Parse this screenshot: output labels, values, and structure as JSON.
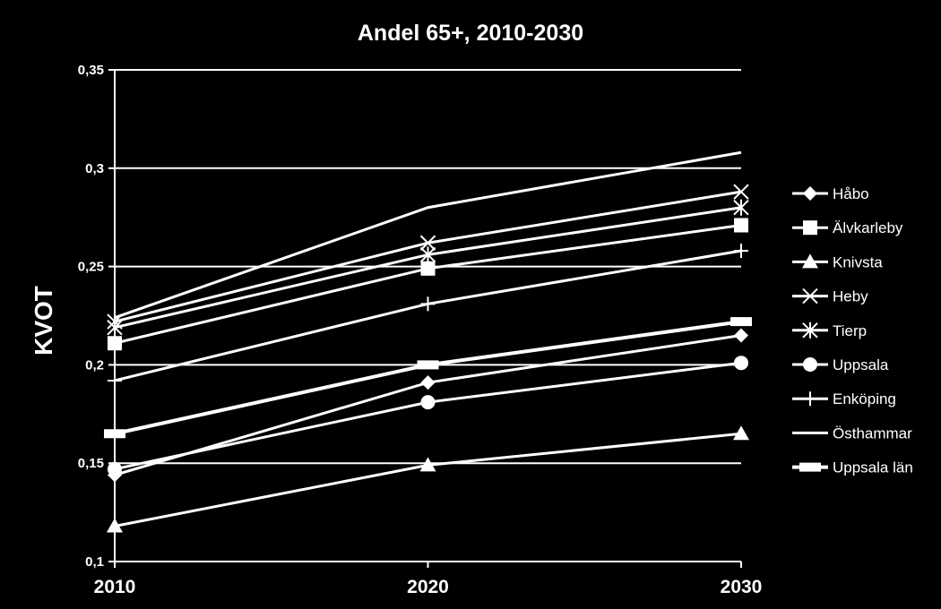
{
  "chart_data": {
    "type": "line",
    "title": "Andel 65+, 2010-2030",
    "xlabel": "",
    "ylabel": "KVOT",
    "x": [
      "2010",
      "2020",
      "2030"
    ],
    "ylim": [
      0.1,
      0.35
    ],
    "yticks": [
      0.1,
      0.15,
      0.2,
      0.25,
      0.3,
      0.35
    ],
    "ytick_labels": [
      "0,1",
      "0,15",
      "0,2",
      "0,25",
      "0,3",
      "0,35"
    ],
    "grid": "horizontal",
    "legend": "right",
    "line_color": "#ffffff",
    "background": "#000000",
    "series": [
      {
        "name": "Håbo",
        "marker": "diamond",
        "values": [
          0.144,
          0.191,
          0.215
        ]
      },
      {
        "name": "Älvkarleby",
        "marker": "square",
        "values": [
          0.211,
          0.249,
          0.271
        ]
      },
      {
        "name": "Knivsta",
        "marker": "triangle",
        "values": [
          0.118,
          0.149,
          0.165
        ]
      },
      {
        "name": "Heby",
        "marker": "x",
        "values": [
          0.222,
          0.262,
          0.288
        ]
      },
      {
        "name": "Tierp",
        "marker": "asterisk",
        "values": [
          0.219,
          0.256,
          0.28
        ]
      },
      {
        "name": "Uppsala",
        "marker": "circle",
        "values": [
          0.147,
          0.181,
          0.201
        ]
      },
      {
        "name": "Enköping",
        "marker": "plus",
        "values": [
          0.192,
          0.231,
          0.258
        ]
      },
      {
        "name": "Östhammar",
        "marker": "none",
        "values": [
          0.224,
          0.28,
          0.308
        ]
      },
      {
        "name": "Uppsala län",
        "marker": "bar",
        "values": [
          0.165,
          0.2,
          0.222
        ]
      }
    ]
  }
}
